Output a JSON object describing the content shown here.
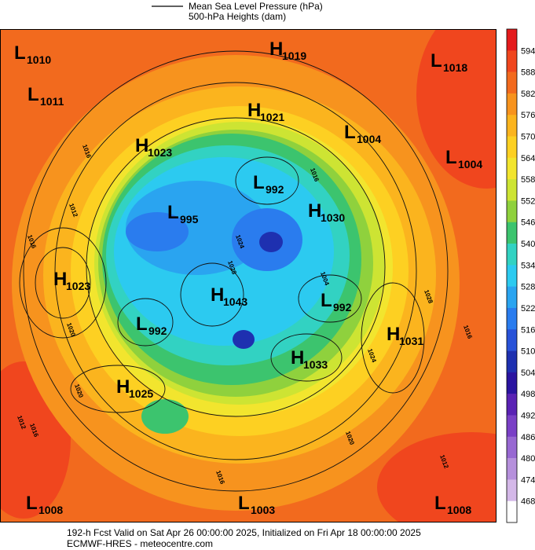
{
  "legend": {
    "line1": "Mean Sea Level Pressure (hPa)",
    "line2": "500-hPa Heights (dam)"
  },
  "centers": [
    {
      "letter": "L",
      "value": 1010
    },
    {
      "letter": "L",
      "value": 1011
    },
    {
      "letter": "H",
      "value": 1019
    },
    {
      "letter": "L",
      "value": 1018
    },
    {
      "letter": "H",
      "value": 1021
    },
    {
      "letter": "L",
      "value": 1004
    },
    {
      "letter": "L",
      "value": 1004
    },
    {
      "letter": "H",
      "value": 1023
    },
    {
      "letter": "L",
      "value": 992
    },
    {
      "letter": "L",
      "value": 995
    },
    {
      "letter": "H",
      "value": 1030
    },
    {
      "letter": "H",
      "value": 1023
    },
    {
      "letter": "H",
      "value": 1043
    },
    {
      "letter": "L",
      "value": 992
    },
    {
      "letter": "L",
      "value": 992
    },
    {
      "letter": "H",
      "value": 1031
    },
    {
      "letter": "H",
      "value": 1033
    },
    {
      "letter": "H",
      "value": 1025
    },
    {
      "letter": "L",
      "value": 1008
    },
    {
      "letter": "L",
      "value": 1003
    },
    {
      "letter": "L",
      "value": 1008
    }
  ],
  "contour_labels": [
    1016,
    1012,
    1016,
    1020,
    1020,
    1016,
    1012,
    1016,
    1020,
    1024,
    1028,
    1012,
    1016,
    1016,
    1024,
    1028,
    1004
  ],
  "colorbar": {
    "labels": [
      594,
      588,
      582,
      576,
      570,
      564,
      558,
      552,
      546,
      540,
      534,
      528,
      522,
      516,
      510,
      504,
      498,
      492,
      486,
      480,
      474,
      468
    ],
    "colors": [
      "#e41a1c",
      "#f0461e",
      "#f26a1e",
      "#f7931e",
      "#fbb41e",
      "#fdd022",
      "#f2e52e",
      "#cde433",
      "#8fd13d",
      "#3cc46e",
      "#32d2c2",
      "#2ccaf0",
      "#2aa4f0",
      "#2a7cee",
      "#2852d8",
      "#1e30b0",
      "#2a14a0",
      "#5a22b4",
      "#7a40c6",
      "#9868d2",
      "#b690dc",
      "#d4b8e8",
      "#ffffff"
    ]
  },
  "footer": {
    "line1": "192-h Fcst Valid on Sat Apr 26 00:00:00 2025, Initialized on Fri Apr 18 00:00:00 2025",
    "line2": "ECMWF-HRES - meteocentre.com"
  }
}
